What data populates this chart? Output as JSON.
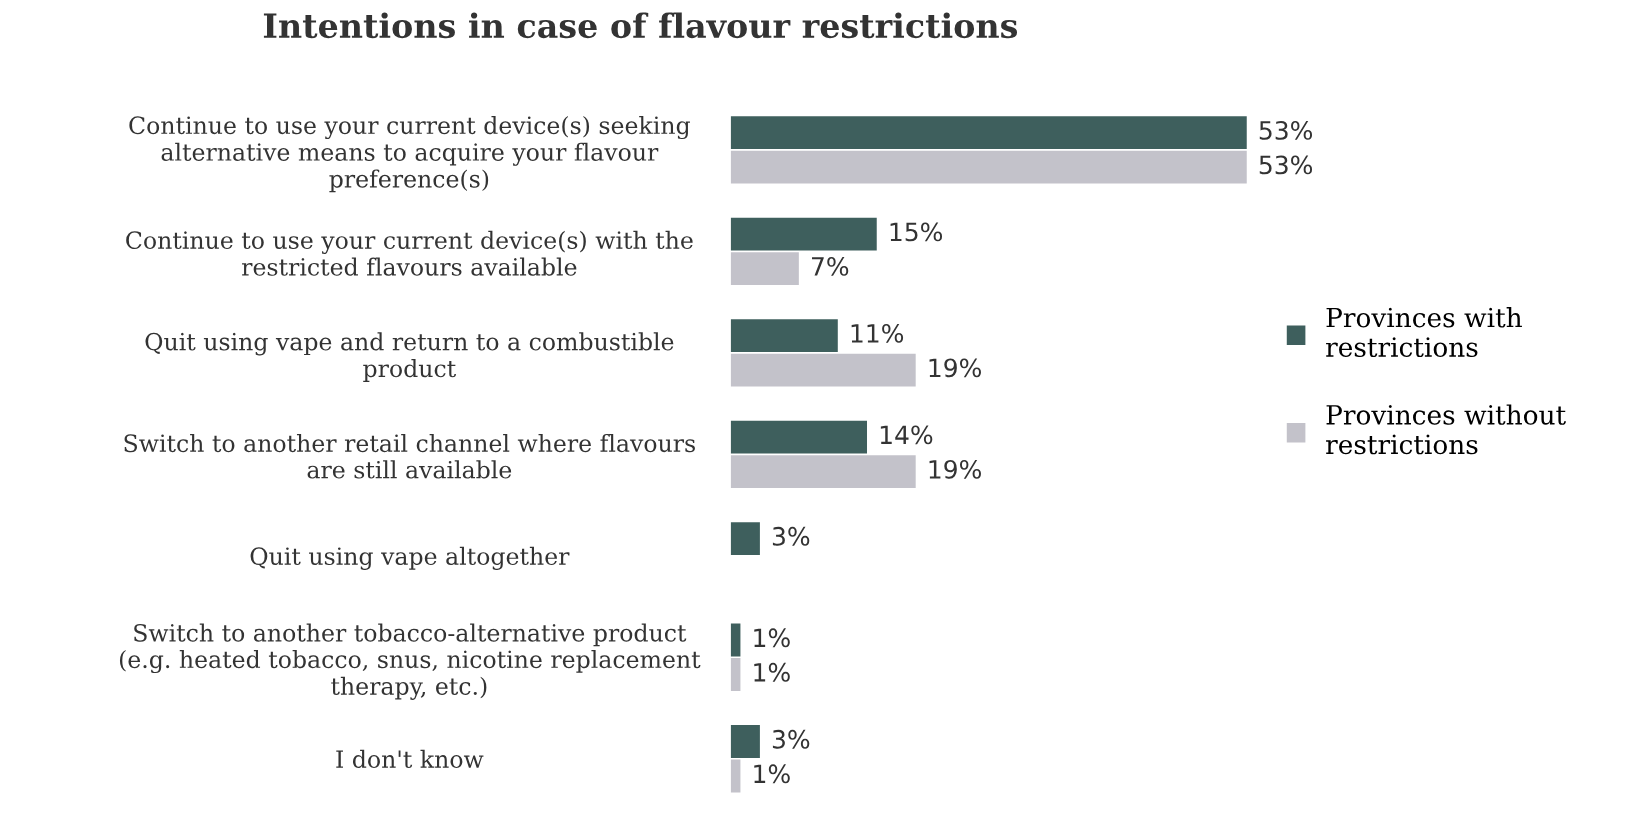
{
  "chart_data": {
    "type": "bar",
    "orientation": "horizontal",
    "title": "Intentions in case of flavour restrictions",
    "categories": [
      "Continue to use your current device(s) seeking\nalternative means to acquire your flavour\npreference(s)",
      "Continue to use your current device(s) with the\nrestricted flavours available",
      "Quit using vape and return to a combustible\nproduct",
      "Switch to another retail channel where flavours\nare still available",
      "Quit using vape altogether",
      "Switch to another tobacco-alternative product\n(e.g. heated tobacco, snus, nicotine replacement\ntherapy, etc.)",
      "I don't know"
    ],
    "series": [
      {
        "name": "Provinces with\nrestrictions",
        "color": "#3e5f5d",
        "values": [
          53,
          15,
          11,
          14,
          3,
          1,
          3
        ],
        "value_labels": [
          "53%",
          "15%",
          "11%",
          "14%",
          "3%",
          "1%",
          "3%"
        ]
      },
      {
        "name": "Provinces without\nrestrictions",
        "color": "#c3c2ca",
        "values": [
          53,
          7,
          19,
          19,
          null,
          1,
          1
        ],
        "value_labels": [
          "53%",
          "7%",
          "19%",
          "19%",
          null,
          "1%",
          "1%"
        ]
      }
    ],
    "tick_labels": "y",
    "grid": false,
    "legend": "right"
  }
}
